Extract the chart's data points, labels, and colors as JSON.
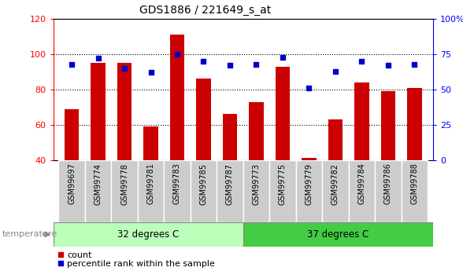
{
  "title": "GDS1886 / 221649_s_at",
  "samples": [
    "GSM99697",
    "GSM99774",
    "GSM99778",
    "GSM99781",
    "GSM99783",
    "GSM99785",
    "GSM99787",
    "GSM99773",
    "GSM99775",
    "GSM99779",
    "GSM99782",
    "GSM99784",
    "GSM99786",
    "GSM99788"
  ],
  "counts": [
    69,
    95,
    95,
    59,
    111,
    86,
    66,
    73,
    93,
    41,
    63,
    84,
    79,
    81
  ],
  "percentiles": [
    68,
    72,
    65,
    62,
    75,
    70,
    67,
    68,
    73,
    51,
    63,
    70,
    67,
    68
  ],
  "group1_label": "32 degrees C",
  "group2_label": "37 degrees C",
  "group1_count": 7,
  "group2_count": 7,
  "ylim_left": [
    40,
    120
  ],
  "ylim_right": [
    0,
    100
  ],
  "yticks_left": [
    40,
    60,
    80,
    100,
    120
  ],
  "yticks_right": [
    0,
    25,
    50,
    75,
    100
  ],
  "ytick_labels_right": [
    "0",
    "25",
    "50",
    "75",
    "100%"
  ],
  "bar_color": "#cc0000",
  "dot_color": "#0000cc",
  "group1_color": "#bbffbb",
  "group2_color": "#44cc44",
  "temp_label": "temperature",
  "legend_count": "count",
  "legend_pct": "percentile rank within the sample"
}
